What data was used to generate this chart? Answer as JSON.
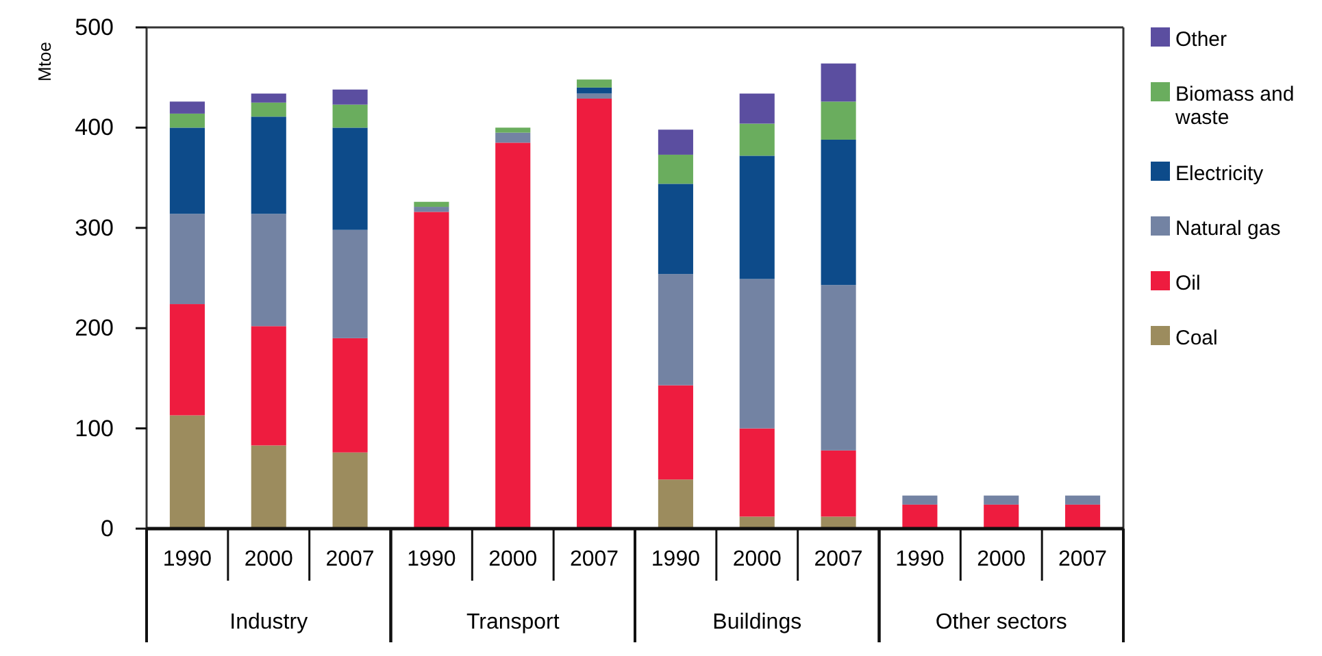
{
  "chart_data": {
    "type": "bar",
    "stacked": true,
    "ylabel": "Mtoe",
    "categories": [
      "1990",
      "2000",
      "2007",
      "1990",
      "2000",
      "2007",
      "1990",
      "2000",
      "2007",
      "1990",
      "2000",
      "2007"
    ],
    "annotations": [
      "Industry",
      "Transport",
      "Buildings",
      "Other sectors"
    ],
    "series": [
      {
        "name": "Coal",
        "color": "#9c8c5e",
        "values": [
          113,
          83,
          76,
          0,
          0,
          0,
          49,
          12,
          12,
          0,
          0,
          0
        ]
      },
      {
        "name": "Oil",
        "color": "#ee1c3f",
        "values": [
          111,
          119,
          114,
          316,
          385,
          429,
          94,
          88,
          66,
          24,
          24,
          24
        ]
      },
      {
        "name": "Natural gas",
        "color": "#7383a3",
        "values": [
          90,
          112,
          108,
          5,
          10,
          5,
          111,
          149,
          165,
          9,
          9,
          9
        ]
      },
      {
        "name": "Electricity",
        "color": "#0d4b8a",
        "values": [
          86,
          97,
          102,
          0,
          0,
          6,
          90,
          123,
          145,
          0,
          0,
          0
        ]
      },
      {
        "name": "Biomass and waste",
        "color": "#6aad5e",
        "values": [
          14,
          14,
          23,
          5,
          5,
          8,
          29,
          32,
          38,
          0,
          0,
          0
        ]
      },
      {
        "name": "Other",
        "color": "#5b4ea0",
        "values": [
          12,
          9,
          15,
          0,
          0,
          0,
          25,
          30,
          38,
          0,
          0,
          0
        ]
      }
    ],
    "ylim": [
      0,
      500
    ],
    "yticks": [
      0,
      100,
      200,
      300,
      400,
      500
    ],
    "legend": "right",
    "grid": false
  }
}
